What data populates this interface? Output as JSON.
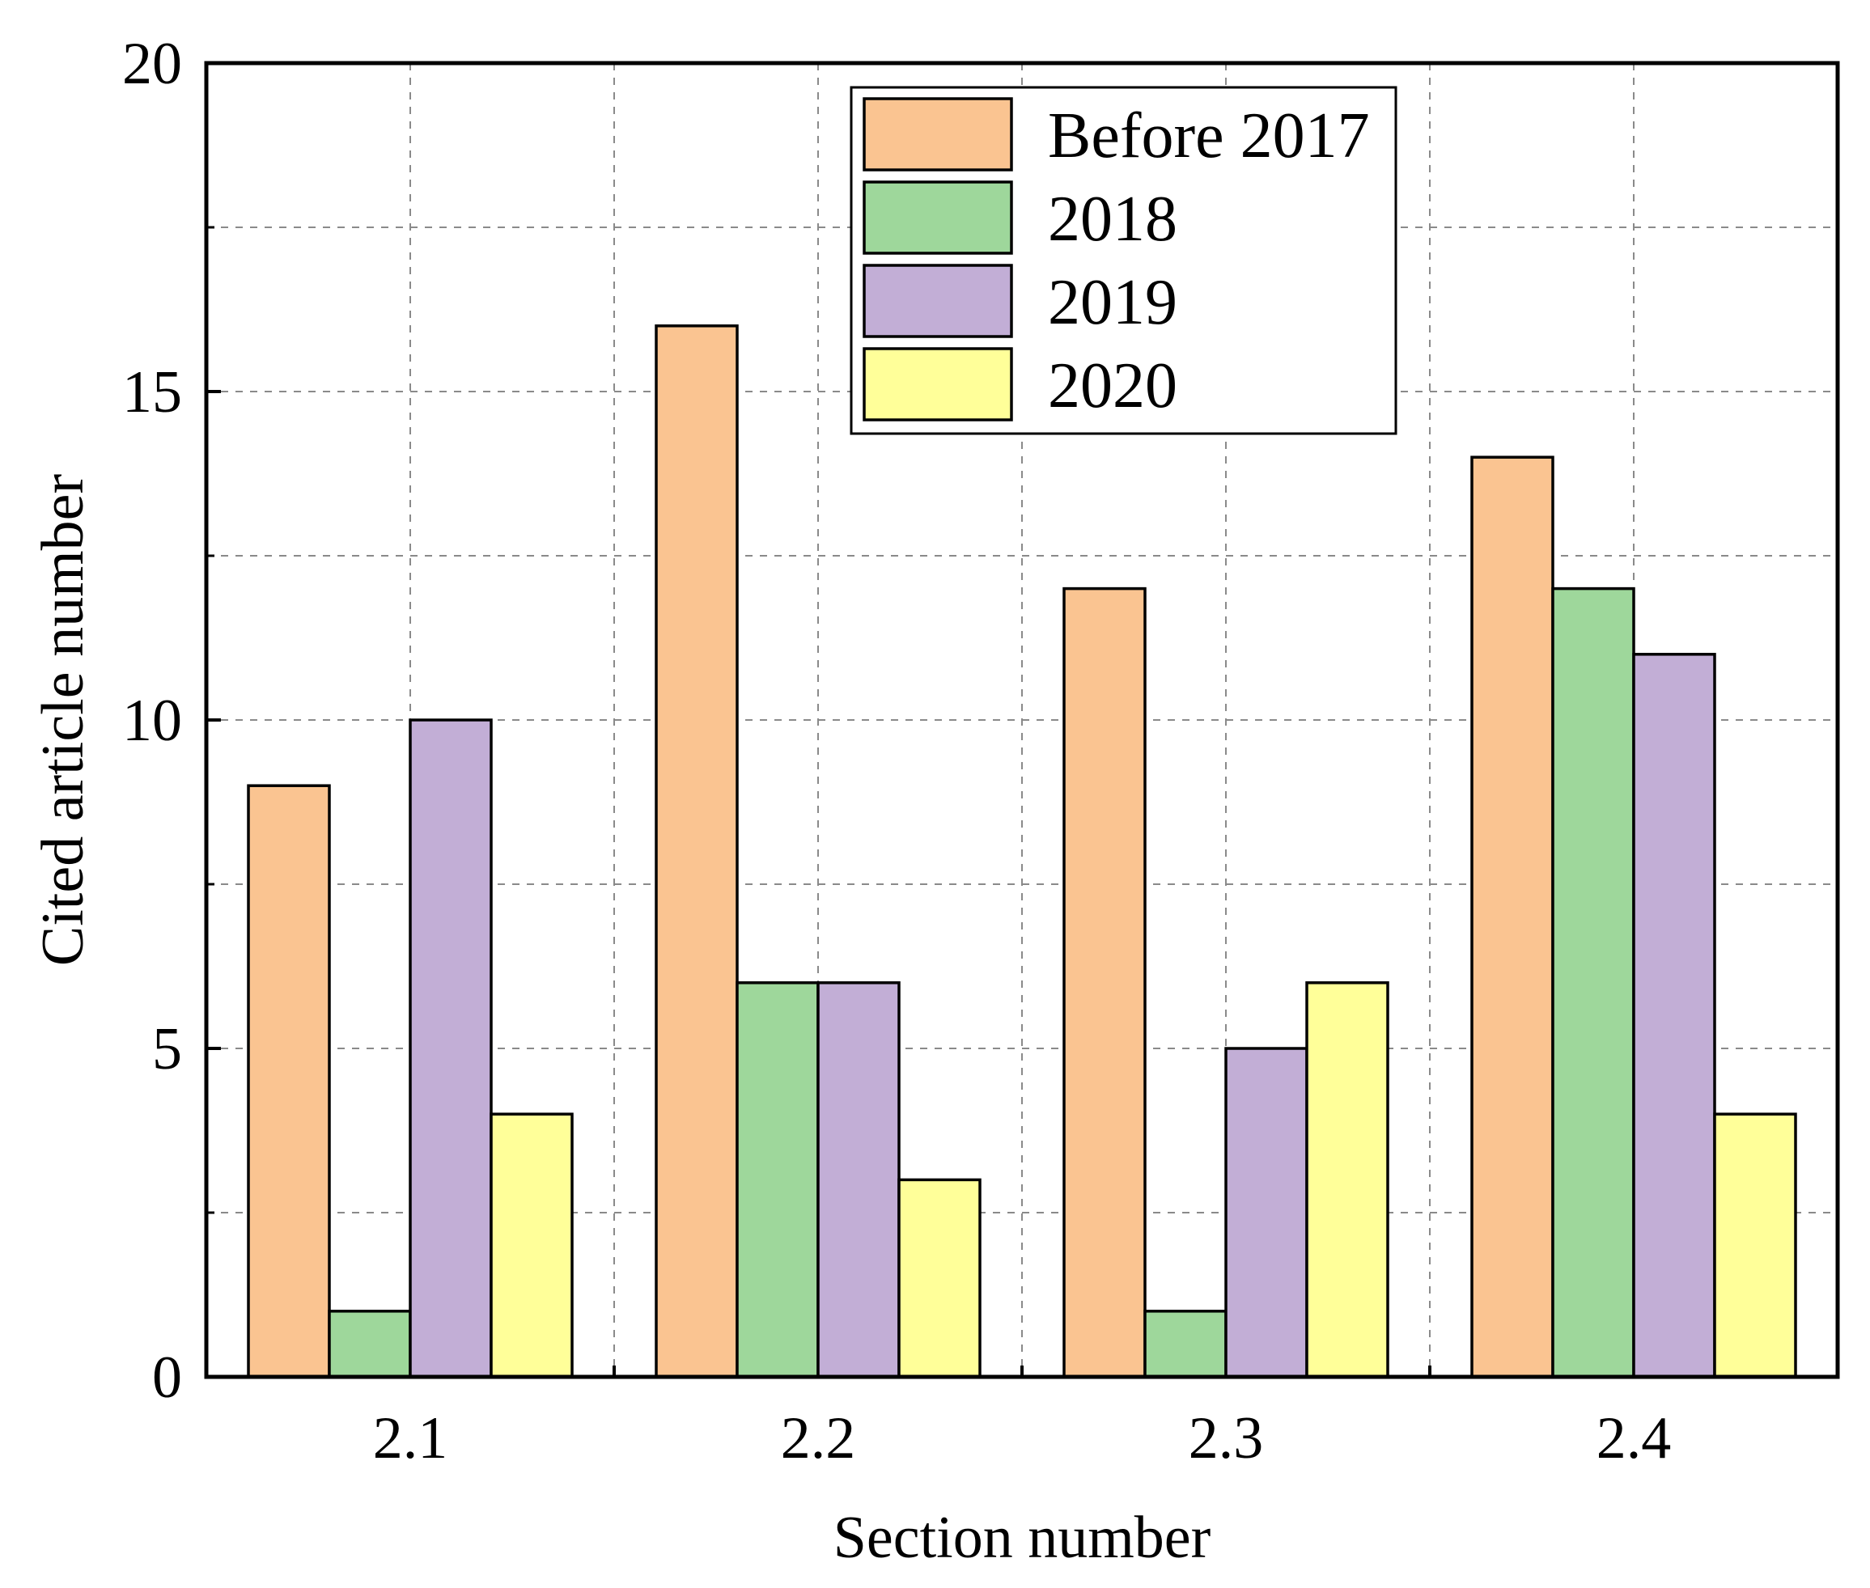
{
  "chart_data": {
    "type": "bar",
    "title": "",
    "xlabel": "Section number",
    "ylabel": "Cited article number",
    "categories": [
      "2.1",
      "2.2",
      "2.3",
      "2.4"
    ],
    "series": [
      {
        "name": "Before 2017",
        "color": "#FAC491",
        "values": [
          9,
          16,
          12,
          14
        ]
      },
      {
        "name": "2018",
        "color": "#9ED79B",
        "values": [
          1,
          6,
          1,
          12
        ]
      },
      {
        "name": "2019",
        "color": "#C2AED6",
        "values": [
          10,
          6,
          5,
          11
        ]
      },
      {
        "name": "2020",
        "color": "#FFFF99",
        "values": [
          4,
          3,
          6,
          4
        ]
      }
    ],
    "ylim": [
      0,
      20
    ],
    "yticks": [
      0,
      5,
      10,
      15,
      20
    ],
    "yticks_minor": [
      2.5,
      7.5,
      12.5,
      17.5
    ],
    "grid": true,
    "legend_position": "top-center"
  }
}
